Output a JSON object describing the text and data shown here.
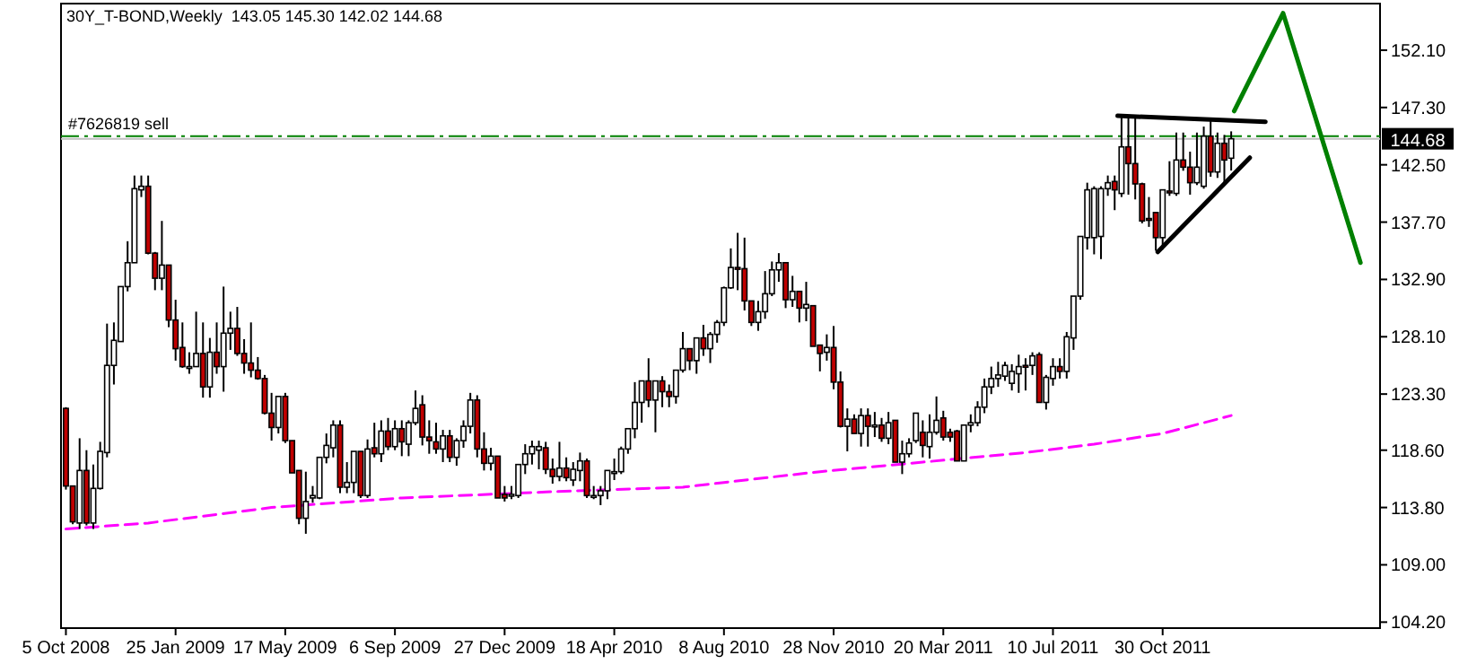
{
  "chart_data": {
    "type": "candlestick",
    "title": "30Y_T-BOND,Weekly  143.05 145.30 142.02 144.68",
    "x": [
      "2008-10-05",
      "2008-10-12",
      "2008-10-19",
      "2008-10-26",
      "2008-11-02",
      "2008-11-09",
      "2008-11-16",
      "2008-11-23",
      "2008-11-30",
      "2008-12-07",
      "2008-12-14",
      "2008-12-21",
      "2008-12-28",
      "2009-01-04",
      "2009-01-11",
      "2009-01-18",
      "2009-01-25",
      "2009-02-01",
      "2009-02-08",
      "2009-02-15",
      "2009-02-22",
      "2009-03-01",
      "2009-03-08",
      "2009-03-15",
      "2009-03-22",
      "2009-03-29",
      "2009-04-05",
      "2009-04-12",
      "2009-04-19",
      "2009-04-26",
      "2009-05-03",
      "2009-05-10",
      "2009-05-17",
      "2009-05-24",
      "2009-05-31",
      "2009-06-07",
      "2009-06-14",
      "2009-06-21",
      "2009-06-28",
      "2009-07-05",
      "2009-07-12",
      "2009-07-19",
      "2009-07-26",
      "2009-08-02",
      "2009-08-09",
      "2009-08-16",
      "2009-08-23",
      "2009-08-30",
      "2009-09-06",
      "2009-09-13",
      "2009-09-20",
      "2009-09-27",
      "2009-10-04",
      "2009-10-11",
      "2009-10-18",
      "2009-10-25",
      "2009-11-01",
      "2009-11-08",
      "2009-11-15",
      "2009-11-22",
      "2009-11-29",
      "2009-12-06",
      "2009-12-13",
      "2009-12-20",
      "2009-12-27",
      "2010-01-03",
      "2010-01-10",
      "2010-01-17",
      "2010-01-24",
      "2010-01-31",
      "2010-02-07",
      "2010-02-14",
      "2010-02-21",
      "2010-02-28",
      "2010-03-07",
      "2010-03-14",
      "2010-03-21",
      "2010-03-28",
      "2010-04-04",
      "2010-04-11",
      "2010-04-18",
      "2010-04-25",
      "2010-05-02",
      "2010-05-09",
      "2010-05-16",
      "2010-05-23",
      "2010-05-30",
      "2010-06-06",
      "2010-06-13",
      "2010-06-20",
      "2010-06-27",
      "2010-07-04",
      "2010-07-11",
      "2010-07-18",
      "2010-07-25",
      "2010-08-01",
      "2010-08-08",
      "2010-08-15",
      "2010-08-22",
      "2010-08-29",
      "2010-09-05",
      "2010-09-12",
      "2010-09-19",
      "2010-09-26",
      "2010-10-03",
      "2010-10-10",
      "2010-10-17",
      "2010-10-24",
      "2010-10-31",
      "2010-11-07",
      "2010-11-14",
      "2010-11-21",
      "2010-11-28",
      "2010-12-05",
      "2010-12-12",
      "2010-12-19",
      "2010-12-26",
      "2011-01-02",
      "2011-01-09",
      "2011-01-16",
      "2011-01-23",
      "2011-01-30",
      "2011-02-06",
      "2011-02-13",
      "2011-02-20",
      "2011-02-27",
      "2011-03-06",
      "2011-03-13",
      "2011-03-20",
      "2011-03-27",
      "2011-04-03",
      "2011-04-10",
      "2011-04-17",
      "2011-04-24",
      "2011-05-01",
      "2011-05-08",
      "2011-05-15",
      "2011-05-22",
      "2011-05-29",
      "2011-06-05",
      "2011-06-12",
      "2011-06-19",
      "2011-06-26",
      "2011-07-03",
      "2011-07-10",
      "2011-07-17",
      "2011-07-24",
      "2011-07-31",
      "2011-08-07",
      "2011-08-14",
      "2011-08-21",
      "2011-08-28",
      "2011-09-04",
      "2011-09-11",
      "2011-09-18",
      "2011-09-25",
      "2011-10-02",
      "2011-10-09",
      "2011-10-16",
      "2011-10-23",
      "2011-10-30",
      "2011-11-06",
      "2011-11-13",
      "2011-11-20",
      "2011-11-27",
      "2011-12-04",
      "2011-12-11",
      "2011-12-18",
      "2011-12-25",
      "2012-01-01",
      "2012-01-08"
    ],
    "ohlc": [
      [
        122.1,
        122.2,
        115.3,
        115.6
      ],
      [
        115.6,
        115.6,
        112.4,
        112.6
      ],
      [
        112.5,
        119.6,
        112.0,
        116.9
      ],
      [
        116.9,
        118.6,
        112.3,
        112.5
      ],
      [
        112.5,
        117.4,
        112.0,
        115.4
      ],
      [
        115.4,
        119.3,
        115.3,
        118.5
      ],
      [
        118.4,
        129.2,
        118.0,
        125.7
      ],
      [
        125.7,
        129.3,
        124.1,
        127.8
      ],
      [
        127.7,
        132.3,
        127.7,
        132.3
      ],
      [
        132.3,
        136.1,
        131.9,
        134.3
      ],
      [
        134.3,
        141.6,
        134.3,
        140.5
      ],
      [
        140.4,
        141.6,
        139.8,
        140.7
      ],
      [
        140.7,
        141.6,
        135.0,
        135.1
      ],
      [
        135.1,
        135.2,
        132.0,
        133.0
      ],
      [
        133.0,
        137.8,
        132.0,
        134.1
      ],
      [
        134.1,
        134.1,
        128.9,
        129.5
      ],
      [
        129.5,
        131.2,
        126.1,
        127.1
      ],
      [
        127.2,
        129.3,
        125.5,
        125.6
      ],
      [
        125.6,
        126.8,
        125.0,
        125.6
      ],
      [
        125.6,
        130.2,
        125.6,
        126.7
      ],
      [
        126.7,
        129.3,
        123.0,
        123.9
      ],
      [
        123.9,
        128.0,
        123.0,
        126.8
      ],
      [
        126.8,
        129.3,
        125.0,
        125.6
      ],
      [
        125.6,
        132.3,
        123.5,
        128.4
      ],
      [
        128.4,
        130.2,
        127.0,
        128.8
      ],
      [
        128.8,
        130.6,
        126.5,
        126.7
      ],
      [
        126.7,
        127.9,
        125.0,
        125.9
      ],
      [
        125.9,
        129.3,
        124.7,
        125.3
      ],
      [
        125.3,
        126.4,
        124.5,
        124.6
      ],
      [
        124.6,
        124.9,
        121.6,
        121.7
      ],
      [
        121.7,
        123.4,
        119.4,
        120.5
      ],
      [
        120.5,
        123.1,
        120.0,
        123.1
      ],
      [
        123.1,
        123.4,
        119.2,
        119.4
      ],
      [
        119.4,
        119.4,
        116.7,
        116.7
      ],
      [
        116.9,
        116.9,
        112.4,
        112.9
      ],
      [
        112.9,
        116.8,
        111.6,
        114.3
      ],
      [
        114.6,
        115.6,
        114.2,
        114.8
      ],
      [
        114.6,
        118.0,
        114.5,
        118.0
      ],
      [
        118.0,
        120.0,
        117.5,
        119.0
      ],
      [
        118.8,
        121.1,
        118.0,
        120.7
      ],
      [
        120.7,
        121.1,
        115.0,
        115.5
      ],
      [
        115.5,
        117.6,
        115.0,
        115.9
      ],
      [
        115.9,
        118.5,
        115.0,
        118.5
      ],
      [
        118.5,
        118.5,
        114.6,
        114.8
      ],
      [
        114.8,
        119.5,
        114.6,
        118.7
      ],
      [
        118.8,
        120.9,
        118.0,
        118.3
      ],
      [
        118.3,
        121.1,
        117.6,
        120.2
      ],
      [
        120.2,
        121.3,
        118.6,
        118.9
      ],
      [
        118.9,
        121.1,
        118.6,
        120.4
      ],
      [
        120.4,
        121.1,
        118.1,
        119.3
      ],
      [
        119.1,
        121.1,
        118.1,
        120.9
      ],
      [
        120.9,
        123.6,
        120.7,
        122.1
      ],
      [
        122.4,
        123.2,
        119.0,
        119.7
      ],
      [
        119.7,
        121.1,
        118.3,
        119.4
      ],
      [
        119.3,
        120.9,
        118.3,
        118.7
      ],
      [
        118.7,
        120.3,
        117.6,
        119.8
      ],
      [
        119.8,
        120.3,
        117.6,
        118.0
      ],
      [
        118.0,
        119.6,
        117.3,
        119.4
      ],
      [
        119.4,
        121.1,
        118.8,
        120.6
      ],
      [
        120.6,
        123.4,
        120.0,
        122.8
      ],
      [
        122.8,
        123.2,
        118.0,
        118.7
      ],
      [
        118.7,
        120.1,
        116.9,
        117.5
      ],
      [
        117.5,
        118.8,
        116.9,
        118.1
      ],
      [
        118.1,
        118.1,
        114.6,
        114.6
      ],
      [
        114.9,
        115.6,
        114.3,
        114.6
      ],
      [
        114.9,
        115.6,
        114.5,
        114.9
      ],
      [
        114.8,
        117.4,
        114.6,
        117.4
      ],
      [
        117.4,
        119.1,
        116.6,
        118.3
      ],
      [
        118.3,
        119.4,
        117.4,
        118.9
      ],
      [
        118.6,
        119.4,
        117.0,
        118.9
      ],
      [
        118.8,
        119.3,
        116.6,
        117.0
      ],
      [
        117.0,
        117.9,
        115.8,
        116.4
      ],
      [
        116.4,
        119.3,
        116.0,
        117.1
      ],
      [
        117.1,
        118.0,
        116.0,
        116.3
      ],
      [
        116.1,
        117.6,
        115.6,
        117.0
      ],
      [
        116.9,
        118.4,
        116.0,
        117.7
      ],
      [
        117.7,
        117.9,
        114.6,
        114.8
      ],
      [
        114.8,
        115.6,
        114.5,
        114.8
      ],
      [
        114.8,
        115.6,
        114.0,
        115.2
      ],
      [
        115.2,
        116.9,
        114.5,
        116.9
      ],
      [
        116.7,
        117.9,
        116.1,
        116.8
      ],
      [
        116.8,
        118.9,
        116.6,
        118.7
      ],
      [
        118.7,
        120.4,
        118.3,
        120.4
      ],
      [
        120.4,
        124.3,
        119.6,
        122.6
      ],
      [
        122.6,
        124.4,
        120.9,
        124.4
      ],
      [
        124.4,
        126.3,
        122.2,
        122.8
      ],
      [
        122.8,
        124.4,
        120.1,
        124.4
      ],
      [
        124.4,
        124.8,
        122.2,
        123.5
      ],
      [
        123.5,
        124.1,
        122.2,
        123.1
      ],
      [
        123.1,
        125.3,
        122.5,
        125.3
      ],
      [
        125.3,
        128.5,
        125.1,
        127.1
      ],
      [
        127.1,
        127.1,
        125.3,
        126.1
      ],
      [
        126.1,
        128.0,
        125.0,
        128.0
      ],
      [
        128.0,
        129.1,
        126.5,
        127.1
      ],
      [
        127.1,
        128.5,
        125.9,
        128.3
      ],
      [
        128.3,
        129.5,
        127.6,
        129.3
      ],
      [
        129.3,
        132.3,
        129.0,
        132.2
      ],
      [
        132.2,
        135.5,
        132.1,
        133.9
      ],
      [
        133.9,
        136.8,
        132.0,
        133.8
      ],
      [
        133.8,
        136.4,
        130.3,
        131.1
      ],
      [
        131.1,
        131.1,
        129.0,
        129.3
      ],
      [
        129.3,
        131.1,
        128.6,
        130.2
      ],
      [
        130.2,
        133.6,
        129.6,
        131.7
      ],
      [
        131.7,
        134.4,
        131.5,
        133.7
      ],
      [
        133.7,
        135.1,
        132.7,
        134.3
      ],
      [
        134.3,
        134.3,
        130.5,
        131.2
      ],
      [
        131.2,
        133.2,
        130.6,
        131.9
      ],
      [
        131.9,
        131.9,
        129.3,
        130.5
      ],
      [
        130.5,
        132.7,
        129.4,
        130.8
      ],
      [
        130.7,
        130.7,
        127.3,
        127.3
      ],
      [
        127.4,
        127.4,
        125.2,
        126.7
      ],
      [
        126.8,
        128.3,
        126.1,
        127.2
      ],
      [
        127.2,
        129.0,
        123.7,
        124.3
      ],
      [
        124.3,
        125.2,
        120.5,
        120.6
      ],
      [
        120.6,
        122.1,
        118.5,
        121.2
      ],
      [
        121.2,
        121.6,
        120.0,
        120.0
      ],
      [
        120.0,
        122.1,
        118.9,
        121.5
      ],
      [
        121.5,
        122.1,
        118.9,
        120.6
      ],
      [
        120.7,
        121.8,
        119.7,
        120.7
      ],
      [
        120.7,
        121.3,
        119.3,
        119.6
      ],
      [
        119.6,
        121.8,
        119.1,
        120.9
      ],
      [
        121.1,
        121.1,
        117.6,
        117.6
      ],
      [
        117.6,
        119.4,
        116.6,
        118.3
      ],
      [
        118.3,
        119.6,
        118.0,
        119.2
      ],
      [
        119.4,
        121.7,
        119.2,
        121.7
      ],
      [
        120.1,
        121.1,
        118.0,
        119.0
      ],
      [
        118.9,
        121.6,
        117.9,
        120.1
      ],
      [
        120.1,
        123.1,
        119.9,
        121.1
      ],
      [
        121.3,
        121.9,
        119.4,
        119.7
      ],
      [
        120.1,
        120.4,
        119.3,
        119.7
      ],
      [
        120.2,
        120.3,
        117.7,
        117.7
      ],
      [
        117.7,
        120.7,
        117.7,
        120.7
      ],
      [
        120.7,
        121.6,
        120.1,
        120.9
      ],
      [
        120.9,
        122.7,
        120.6,
        122.2
      ],
      [
        122.2,
        124.6,
        121.7,
        123.9
      ],
      [
        123.9,
        125.6,
        123.3,
        124.6
      ],
      [
        124.6,
        126.0,
        123.9,
        124.9
      ],
      [
        124.8,
        126.0,
        124.4,
        125.7
      ],
      [
        124.2,
        125.8,
        123.6,
        125.2
      ],
      [
        125.0,
        126.6,
        123.4,
        125.6
      ],
      [
        125.7,
        126.3,
        123.6,
        125.6
      ],
      [
        125.7,
        126.8,
        124.9,
        126.5
      ],
      [
        126.6,
        126.8,
        122.6,
        122.6
      ],
      [
        122.6,
        124.9,
        122.0,
        124.7
      ],
      [
        124.6,
        126.3,
        124.0,
        125.6
      ],
      [
        125.6,
        126.3,
        124.6,
        125.2
      ],
      [
        125.2,
        128.5,
        124.6,
        128.1
      ],
      [
        128.0,
        131.5,
        127.0,
        131.5
      ],
      [
        131.5,
        136.5,
        131.2,
        136.5
      ],
      [
        136.4,
        141.0,
        135.4,
        140.4
      ],
      [
        136.4,
        140.7,
        135.0,
        140.5
      ],
      [
        136.5,
        140.7,
        134.6,
        140.5
      ],
      [
        140.5,
        141.6,
        139.9,
        141.0
      ],
      [
        141.1,
        141.6,
        138.7,
        140.4
      ],
      [
        140.1,
        146.6,
        139.8,
        144.0
      ],
      [
        144.0,
        146.6,
        140.0,
        142.6
      ],
      [
        142.6,
        146.6,
        139.6,
        140.9
      ],
      [
        140.9,
        141.0,
        137.6,
        137.8
      ],
      [
        138.0,
        139.8,
        137.3,
        137.9
      ],
      [
        138.5,
        138.5,
        135.3,
        136.4
      ],
      [
        136.4,
        140.4,
        135.4,
        140.4
      ],
      [
        140.3,
        142.8,
        139.9,
        140.2
      ],
      [
        140.1,
        145.2,
        139.9,
        142.9
      ],
      [
        142.9,
        145.2,
        142.0,
        142.3
      ],
      [
        142.3,
        143.6,
        140.0,
        141.0
      ],
      [
        141.0,
        145.2,
        140.8,
        142.3
      ],
      [
        140.7,
        145.7,
        140.5,
        144.9
      ],
      [
        144.9,
        146.3,
        141.5,
        141.9
      ],
      [
        141.9,
        145.2,
        141.4,
        144.3
      ],
      [
        144.3,
        145.0,
        141.0,
        142.9
      ],
      [
        143.05,
        145.3,
        142.02,
        144.68
      ]
    ],
    "colors": [
      "#c00000",
      "#c00000",
      "#ffffff",
      "#c00000",
      "#ffffff",
      "#ffffff",
      "#ffffff",
      "#ffffff",
      "#ffffff",
      "#ffffff",
      "#ffffff",
      "#ffffff",
      "#c00000",
      "#c00000",
      "#ffffff",
      "#c00000",
      "#c00000",
      "#c00000",
      "#ffffff",
      "#ffffff",
      "#c00000",
      "#ffffff",
      "#c00000",
      "#ffffff",
      "#ffffff",
      "#c00000",
      "#c00000",
      "#c00000",
      "#c00000",
      "#c00000",
      "#c00000",
      "#ffffff",
      "#c00000",
      "#c00000",
      "#c00000",
      "#ffffff",
      "#ffffff",
      "#ffffff",
      "#ffffff",
      "#ffffff",
      "#c00000",
      "#ffffff",
      "#ffffff",
      "#c00000",
      "#ffffff",
      "#c00000",
      "#ffffff",
      "#c00000",
      "#ffffff",
      "#c00000",
      "#ffffff",
      "#ffffff",
      "#c00000",
      "#c00000",
      "#c00000",
      "#ffffff",
      "#c00000",
      "#ffffff",
      "#ffffff",
      "#ffffff",
      "#c00000",
      "#c00000",
      "#ffffff",
      "#c00000",
      "#c00000",
      "#ffffff",
      "#ffffff",
      "#ffffff",
      "#ffffff",
      "#ffffff",
      "#c00000",
      "#c00000",
      "#ffffff",
      "#c00000",
      "#ffffff",
      "#ffffff",
      "#c00000",
      "#ffffff",
      "#ffffff",
      "#ffffff",
      "#ffffff",
      "#ffffff",
      "#ffffff",
      "#ffffff",
      "#ffffff",
      "#c00000",
      "#ffffff",
      "#c00000",
      "#c00000",
      "#ffffff",
      "#ffffff",
      "#c00000",
      "#ffffff",
      "#c00000",
      "#ffffff",
      "#ffffff",
      "#ffffff",
      "#ffffff",
      "#c00000",
      "#c00000",
      "#c00000",
      "#ffffff",
      "#ffffff",
      "#ffffff",
      "#ffffff",
      "#c00000",
      "#ffffff",
      "#c00000",
      "#ffffff",
      "#c00000",
      "#c00000",
      "#ffffff",
      "#c00000",
      "#c00000",
      "#ffffff",
      "#c00000",
      "#ffffff",
      "#c00000",
      "#ffffff",
      "#c00000",
      "#ffffff",
      "#c00000",
      "#ffffff",
      "#ffffff",
      "#ffffff",
      "#c00000",
      "#ffffff",
      "#ffffff",
      "#c00000",
      "#c00000",
      "#c00000",
      "#ffffff",
      "#ffffff",
      "#ffffff",
      "#ffffff",
      "#ffffff",
      "#ffffff",
      "#ffffff",
      "#ffffff",
      "#ffffff",
      "#c00000",
      "#ffffff",
      "#c00000",
      "#ffffff",
      "#ffffff",
      "#c00000",
      "#ffffff",
      "#ffffff",
      "#ffffff",
      "#ffffff",
      "#ffffff",
      "#ffffff",
      "#ffffff",
      "#c00000",
      "#ffffff",
      "#c00000",
      "#c00000",
      "#c00000",
      "#c00000",
      "#c00000",
      "#ffffff",
      "#c00000",
      "#ffffff",
      "#c00000",
      "#c00000",
      "#ffffff",
      "#ffffff",
      "#c00000",
      "#ffffff",
      "#c00000",
      "#ffffff"
    ],
    "series": [
      {
        "type": "line",
        "color": "#ff00ff",
        "line_style": "dashed",
        "x": [
          "2008-10-05",
          "2008-12-28",
          "2009-05-03",
          "2009-09-13",
          "2010-02-07",
          "2010-06-27",
          "2010-08-08",
          "2010-11-14",
          "2011-02-27",
          "2011-06-12",
          "2011-08-21",
          "2011-10-30",
          "2012-01-08"
        ],
        "values": [
          112.0,
          112.5,
          113.8,
          114.6,
          115.1,
          115.5,
          115.9,
          116.8,
          117.6,
          118.4,
          119.1,
          120.0,
          121.5
        ]
      },
      {
        "type": "line",
        "color": "#000000",
        "x": [
          "2011-09-14",
          "2012-02-12"
        ],
        "values": [
          146.6,
          146.1
        ]
      },
      {
        "type": "line",
        "color": "#000000",
        "x": [
          "2011-10-25",
          "2012-01-27"
        ],
        "values": [
          135.2,
          143.1
        ]
      },
      {
        "type": "line",
        "color": "#008000",
        "x": [
          "2012-01-11",
          "2012-03-01",
          "2012-05-19"
        ],
        "values": [
          147.0,
          155.2,
          134.3
        ]
      }
    ],
    "ref_lines": [
      {
        "axis": "y",
        "value": 144.9,
        "label": "#7626819 sell",
        "color": "#008000",
        "line_style": "dashed"
      },
      {
        "axis": "y",
        "value": 144.68,
        "label": "144.68",
        "color": "#c0c0c0"
      }
    ],
    "xlim": [
      "2008-09-30",
      "2012-06-08"
    ],
    "xticks": [
      {
        "value": "2008-10-05",
        "label": "5 Oct 2008"
      },
      {
        "value": "2009-01-25",
        "label": "25 Jan 2009"
      },
      {
        "value": "2009-05-17",
        "label": "17 May 2009"
      },
      {
        "value": "2009-09-06",
        "label": "6 Sep 2009"
      },
      {
        "value": "2009-12-27",
        "label": "27 Dec 2009"
      },
      {
        "value": "2010-04-18",
        "label": "18 Apr 2010"
      },
      {
        "value": "2010-08-08",
        "label": "8 Aug 2010"
      },
      {
        "value": "2010-11-28",
        "label": "28 Nov 2010"
      },
      {
        "value": "2011-03-20",
        "label": "20 Mar 2011"
      },
      {
        "value": "2011-07-10",
        "label": "10 Jul 2011"
      },
      {
        "value": "2011-10-30",
        "label": "30 Oct 2011"
      }
    ],
    "ylim": [
      103.7,
      156.0
    ],
    "yticks": [
      {
        "value": 104.2,
        "label": "104.20"
      },
      {
        "value": 109.0,
        "label": "109.00"
      },
      {
        "value": 113.8,
        "label": "113.80"
      },
      {
        "value": 118.6,
        "label": "118.60"
      },
      {
        "value": 123.3,
        "label": "123.30"
      },
      {
        "value": 128.1,
        "label": "128.10"
      },
      {
        "value": 132.9,
        "label": "132.90"
      },
      {
        "value": 137.7,
        "label": "137.70"
      },
      {
        "value": 142.5,
        "label": "142.50"
      },
      {
        "value": 147.3,
        "label": "147.30"
      },
      {
        "value": 152.1,
        "label": "152.10"
      }
    ]
  }
}
